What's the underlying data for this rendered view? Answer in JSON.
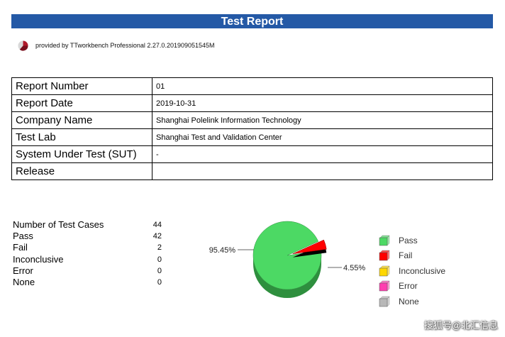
{
  "report": {
    "title": "Test Report",
    "provided_by": "provided by TTworkbench Professional 2.27.0.201909051545M"
  },
  "info_table": [
    {
      "label": "Report Number",
      "value": "01"
    },
    {
      "label": "Report Date",
      "value": "2019-10-31"
    },
    {
      "label": "Company Name",
      "value": "Shanghai Polelink Information Technology"
    },
    {
      "label": "Test Lab",
      "value": "Shanghai Test and Validation Center"
    },
    {
      "label": "System Under Test (SUT)",
      "value": "-"
    },
    {
      "label": "Release",
      "value": ""
    }
  ],
  "stats": [
    {
      "label": "Number of Test Cases",
      "value": "44"
    },
    {
      "label": "Pass",
      "value": "42"
    },
    {
      "label": "Fail",
      "value": "2"
    },
    {
      "label": "Inconclusive",
      "value": "0"
    },
    {
      "label": "Error",
      "value": "0"
    },
    {
      "label": "None",
      "value": "0"
    }
  ],
  "chart_data": {
    "type": "pie",
    "slices": [
      {
        "name": "Pass",
        "value": 95.45,
        "label": "95.45%",
        "color": "#4cd964"
      },
      {
        "name": "Fail",
        "value": 4.55,
        "label": "4.55%",
        "color": "#ff0000"
      },
      {
        "name": "Inconclusive",
        "value": 0,
        "color": "#ffd700"
      },
      {
        "name": "Error",
        "value": 0,
        "color": "#ff3fb0"
      },
      {
        "name": "None",
        "value": 0,
        "color": "#b8b8b8"
      }
    ],
    "legend": [
      "Pass",
      "Fail",
      "Inconclusive",
      "Error",
      "None"
    ],
    "legend_position": "right",
    "style": "3d"
  },
  "colors": {
    "title_bar": "#2459a6"
  },
  "watermark": "搜狐号@北汇信息"
}
